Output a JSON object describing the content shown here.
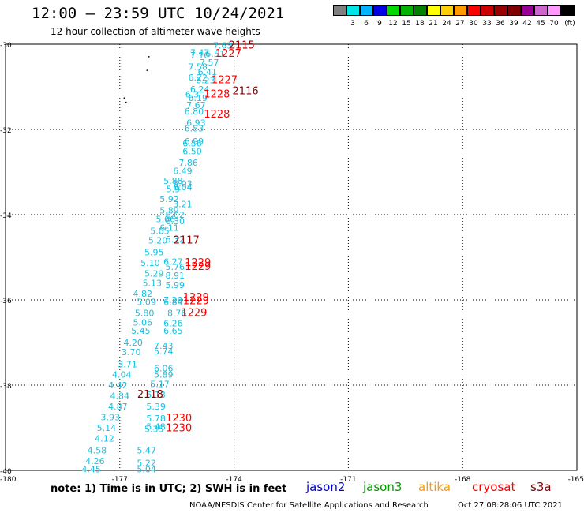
{
  "header": {
    "title": "12:00 – 23:59 UTC 10/24/2021",
    "subtitle": "12 hour collection of altimeter wave heights"
  },
  "color_scale": {
    "unit": "(ft)",
    "bins": [
      {
        "label": "",
        "color": "#7f7f7f"
      },
      {
        "label": "3",
        "color": "#00e6e6"
      },
      {
        "label": "6",
        "color": "#00b2ff"
      },
      {
        "label": "9",
        "color": "#0000e6"
      },
      {
        "label": "12",
        "color": "#00d900"
      },
      {
        "label": "15",
        "color": "#00b300"
      },
      {
        "label": "18",
        "color": "#008000"
      },
      {
        "label": "21",
        "color": "#ffff00"
      },
      {
        "label": "24",
        "color": "#ffd000"
      },
      {
        "label": "27",
        "color": "#ff9900"
      },
      {
        "label": "30",
        "color": "#ff0000"
      },
      {
        "label": "33",
        "color": "#cc0000"
      },
      {
        "label": "36",
        "color": "#990000"
      },
      {
        "label": "39",
        "color": "#800000"
      },
      {
        "label": "42",
        "color": "#990099"
      },
      {
        "label": "45",
        "color": "#cc66cc"
      },
      {
        "label": "70",
        "color": "#ff99ff"
      },
      {
        "label": "",
        "color": "#000000"
      }
    ]
  },
  "chart_data": {
    "type": "scatter",
    "xlim": [
      -180,
      -165
    ],
    "ylim": [
      -40,
      -30
    ],
    "x_ticks": [
      "-180",
      "-177",
      "-174",
      "-171",
      "-168",
      "-165"
    ],
    "y_ticks": [
      "-30",
      "-32",
      "-34",
      "-36",
      "-38",
      "-40"
    ],
    "x_tick_values": [
      -180,
      -177,
      -174,
      -171,
      -168,
      -165
    ],
    "y_tick_values": [
      -30,
      -32,
      -34,
      -36,
      -38,
      -40
    ],
    "grid": true,
    "point_color": "#18c0e0",
    "points": [
      {
        "lon": -174.3,
        "lat": -30.1,
        "v": "7.63"
      },
      {
        "lon": -174.9,
        "lat": -30.27,
        "v": "7.47"
      },
      {
        "lon": -174.5,
        "lat": -30.3,
        "v": "6.51"
      },
      {
        "lon": -174.9,
        "lat": -30.33,
        "v": "7.10"
      },
      {
        "lon": -174.65,
        "lat": -30.5,
        "v": "7.57"
      },
      {
        "lon": -174.95,
        "lat": -30.6,
        "v": "7.58"
      },
      {
        "lon": -174.7,
        "lat": -30.72,
        "v": "6.41"
      },
      {
        "lon": -174.95,
        "lat": -30.85,
        "v": "6.22"
      },
      {
        "lon": -174.75,
        "lat": -30.92,
        "v": "6.23"
      },
      {
        "lon": -174.9,
        "lat": -31.13,
        "v": "6.24"
      },
      {
        "lon": -175.1,
        "lat": -31.25,
        "v": "6.3"
      },
      {
        "lon": -174.95,
        "lat": -31.33,
        "v": "6.19"
      },
      {
        "lon": -175.0,
        "lat": -31.5,
        "v": "7.67"
      },
      {
        "lon": -175.05,
        "lat": -31.65,
        "v": "6.80"
      },
      {
        "lon": -175.0,
        "lat": -31.92,
        "v": "6.93"
      },
      {
        "lon": -175.05,
        "lat": -32.05,
        "v": "6.83"
      },
      {
        "lon": -175.05,
        "lat": -32.35,
        "v": "6.99"
      },
      {
        "lon": -175.1,
        "lat": -32.4,
        "v": "6.56"
      },
      {
        "lon": -175.1,
        "lat": -32.58,
        "v": "6.50"
      },
      {
        "lon": -175.2,
        "lat": -32.85,
        "v": "7.86"
      },
      {
        "lon": -175.35,
        "lat": -33.05,
        "v": "6.49"
      },
      {
        "lon": -175.6,
        "lat": -33.28,
        "v": "5.88"
      },
      {
        "lon": -175.35,
        "lat": -33.34,
        "v": "6.03"
      },
      {
        "lon": -175.6,
        "lat": -33.47,
        "v": "5.9"
      },
      {
        "lon": -175.35,
        "lat": -33.43,
        "v": "6.04"
      },
      {
        "lon": -175.7,
        "lat": -33.7,
        "v": "5.92"
      },
      {
        "lon": -175.35,
        "lat": -33.82,
        "v": "3.21"
      },
      {
        "lon": -175.7,
        "lat": -33.97,
        "v": "5.89"
      },
      {
        "lon": -175.55,
        "lat": -34.07,
        "v": "6.02"
      },
      {
        "lon": -175.8,
        "lat": -34.18,
        "v": "5.66"
      },
      {
        "lon": -175.55,
        "lat": -34.22,
        "v": "6.30"
      },
      {
        "lon": -175.7,
        "lat": -34.38,
        "v": "6.11"
      },
      {
        "lon": -175.95,
        "lat": -34.45,
        "v": "5.05"
      },
      {
        "lon": -176.0,
        "lat": -34.68,
        "v": "5.20"
      },
      {
        "lon": -175.55,
        "lat": -34.65,
        "v": "6.32"
      },
      {
        "lon": -176.1,
        "lat": -34.95,
        "v": "5.95"
      },
      {
        "lon": -176.2,
        "lat": -35.2,
        "v": "5.10"
      },
      {
        "lon": -175.6,
        "lat": -35.18,
        "v": "6.27"
      },
      {
        "lon": -175.55,
        "lat": -35.3,
        "v": "5.76"
      },
      {
        "lon": -176.1,
        "lat": -35.45,
        "v": "5.29"
      },
      {
        "lon": -175.55,
        "lat": -35.5,
        "v": "8.91"
      },
      {
        "lon": -176.15,
        "lat": -35.68,
        "v": "5.13"
      },
      {
        "lon": -175.55,
        "lat": -35.72,
        "v": "5.99"
      },
      {
        "lon": -176.4,
        "lat": -35.93,
        "v": "4.82"
      },
      {
        "lon": -175.6,
        "lat": -36.07,
        "v": "7.29"
      },
      {
        "lon": -176.3,
        "lat": -36.12,
        "v": "5.09"
      },
      {
        "lon": -175.6,
        "lat": -36.12,
        "v": "6.84"
      },
      {
        "lon": -176.35,
        "lat": -36.38,
        "v": "5.80"
      },
      {
        "lon": -175.5,
        "lat": -36.38,
        "v": "8.76"
      },
      {
        "lon": -176.4,
        "lat": -36.6,
        "v": "5.06"
      },
      {
        "lon": -175.6,
        "lat": -36.62,
        "v": "6.26"
      },
      {
        "lon": -176.45,
        "lat": -36.8,
        "v": "5.45"
      },
      {
        "lon": -175.6,
        "lat": -36.8,
        "v": "6.65"
      },
      {
        "lon": -176.65,
        "lat": -37.07,
        "v": "4.20"
      },
      {
        "lon": -175.85,
        "lat": -37.15,
        "v": "7.43"
      },
      {
        "lon": -176.7,
        "lat": -37.3,
        "v": "3.70"
      },
      {
        "lon": -175.85,
        "lat": -37.28,
        "v": "5.74"
      },
      {
        "lon": -176.8,
        "lat": -37.58,
        "v": "3.71"
      },
      {
        "lon": -175.85,
        "lat": -37.68,
        "v": "6.06"
      },
      {
        "lon": -176.95,
        "lat": -37.82,
        "v": "4.04"
      },
      {
        "lon": -175.85,
        "lat": -37.82,
        "v": "5.89"
      },
      {
        "lon": -177.05,
        "lat": -38.07,
        "v": "4.42"
      },
      {
        "lon": -175.95,
        "lat": -38.05,
        "v": "5.17"
      },
      {
        "lon": -177.0,
        "lat": -38.32,
        "v": "4.84"
      },
      {
        "lon": -176.05,
        "lat": -38.3,
        "v": "5.13"
      },
      {
        "lon": -177.05,
        "lat": -38.57,
        "v": "4.87"
      },
      {
        "lon": -176.05,
        "lat": -38.57,
        "v": "5.39"
      },
      {
        "lon": -177.25,
        "lat": -38.82,
        "v": "3.93"
      },
      {
        "lon": -176.05,
        "lat": -38.85,
        "v": "5.78"
      },
      {
        "lon": -177.35,
        "lat": -39.07,
        "v": "5.14"
      },
      {
        "lon": -176.05,
        "lat": -39.05,
        "v": "5.48"
      },
      {
        "lon": -176.1,
        "lat": -39.1,
        "v": "5.35"
      },
      {
        "lon": -177.4,
        "lat": -39.32,
        "v": "4.12"
      },
      {
        "lon": -177.6,
        "lat": -39.6,
        "v": "4.58"
      },
      {
        "lon": -176.3,
        "lat": -39.6,
        "v": "5.47"
      },
      {
        "lon": -177.65,
        "lat": -39.85,
        "v": "4.26"
      },
      {
        "lon": -176.3,
        "lat": -39.9,
        "v": "5.22"
      },
      {
        "lon": -177.75,
        "lat": -40.05,
        "v": "4.45"
      },
      {
        "lon": -176.3,
        "lat": -40.05,
        "v": "5.04"
      }
    ],
    "time_labels": [
      {
        "lon": -173.8,
        "lat": -30.1,
        "t": "2115",
        "color": "#990000"
      },
      {
        "lon": -174.15,
        "lat": -30.3,
        "t": "1227",
        "color": "#ff0000"
      },
      {
        "lon": -174.25,
        "lat": -30.92,
        "t": "1227",
        "color": "#ff0000"
      },
      {
        "lon": -173.7,
        "lat": -31.18,
        "t": "2116",
        "color": "#800000"
      },
      {
        "lon": -174.45,
        "lat": -31.25,
        "t": "1228",
        "color": "#ff0000"
      },
      {
        "lon": -174.45,
        "lat": -31.72,
        "t": "1228",
        "color": "#ff0000"
      },
      {
        "lon": -175.25,
        "lat": -34.68,
        "t": "2117",
        "color": "#990000"
      },
      {
        "lon": -174.95,
        "lat": -35.2,
        "t": "1229",
        "color": "#ff0000"
      },
      {
        "lon": -174.95,
        "lat": -35.3,
        "t": "1229",
        "color": "#ff0000"
      },
      {
        "lon": -175.0,
        "lat": -36.02,
        "t": "1229",
        "color": "#ff0000"
      },
      {
        "lon": -175.0,
        "lat": -36.1,
        "t": "1229",
        "color": "#ff0000"
      },
      {
        "lon": -175.05,
        "lat": -36.38,
        "t": "1229",
        "color": "#ff0000"
      },
      {
        "lon": -176.2,
        "lat": -38.3,
        "t": "2118",
        "color": "#800000"
      },
      {
        "lon": -175.45,
        "lat": -38.85,
        "t": "1230",
        "color": "#ff0000"
      },
      {
        "lon": -175.45,
        "lat": -39.08,
        "t": "1230",
        "color": "#ff0000"
      }
    ],
    "specks": [
      {
        "lon": -176.25,
        "lat": -30.28
      },
      {
        "lon": -176.3,
        "lat": -30.6
      },
      {
        "lon": -176.9,
        "lat": -31.25
      },
      {
        "lon": -176.85,
        "lat": -31.35
      }
    ]
  },
  "footer": {
    "note": "note:  1) Time is in UTC;  2) SWH is in feet",
    "satellites": [
      {
        "name": "jason2",
        "color": "#0000cc"
      },
      {
        "name": "jason3",
        "color": "#009900"
      },
      {
        "name": "altika",
        "color": "#ff9900"
      },
      {
        "name": "cryosat",
        "color": "#ff0000"
      },
      {
        "name": "s3a",
        "color": "#800000"
      }
    ],
    "credit": "NOAA/NESDIS Center for Satellite Applications and Research",
    "timestamp": "Oct 27 08:28:06 UTC 2021"
  }
}
